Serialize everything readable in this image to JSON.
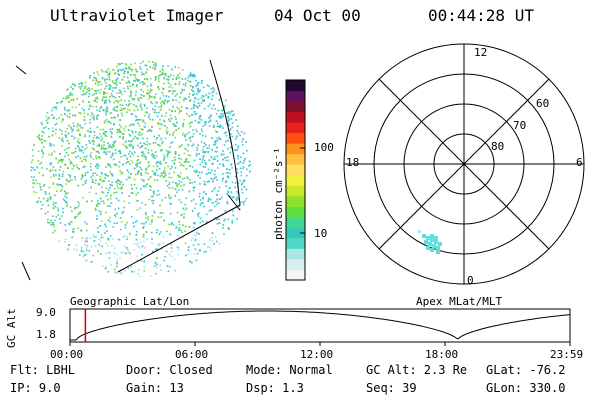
{
  "header": {
    "title": "Ultraviolet Imager",
    "date": "04 Oct 00",
    "time": "00:44:28 UT"
  },
  "colorbar": {
    "label": "photon cm⁻²s⁻¹",
    "ticks": [
      "100",
      "10"
    ],
    "colors": [
      "#f4f4f4",
      "#d8f0f0",
      "#a8e8e0",
      "#50d8c8",
      "#38c8b8",
      "#40d890",
      "#60e040",
      "#90e030",
      "#c8e828",
      "#f0f040",
      "#ffe060",
      "#ffc040",
      "#ff9020",
      "#ff5010",
      "#e82020",
      "#c01020",
      "#801030",
      "#601060",
      "#200830"
    ]
  },
  "panels": {
    "left_caption": "Geographic Lat/Lon",
    "right_caption": "Apex MLat/MLT",
    "dot_colors": [
      "#5ad04a",
      "#46c8e0",
      "#8ae040",
      "#30c8c0",
      "#b0e0f0"
    ]
  },
  "polar": {
    "hour_labels": [
      "12",
      "18",
      "6",
      "0"
    ],
    "lat_labels": [
      "60",
      "70",
      "80"
    ]
  },
  "altitude_plot": {
    "ylabel": "GC Alt",
    "yticks": [
      "9.0",
      "1.8"
    ],
    "xticks": [
      "00:00",
      "06:00",
      "12:00",
      "18:00",
      "23:59"
    ],
    "marker_time_hours": 0.74
  },
  "info": {
    "row1": [
      "Flt: LBHL",
      "Door: Closed",
      "Mode: Normal",
      "GC Alt: 2.3 Re",
      "GLat: -76.2"
    ],
    "row2": [
      "IP:  9.0",
      "Gain: 13",
      "Dsp:   1.3",
      "Seq: 39",
      "GLon: 330.0"
    ]
  }
}
